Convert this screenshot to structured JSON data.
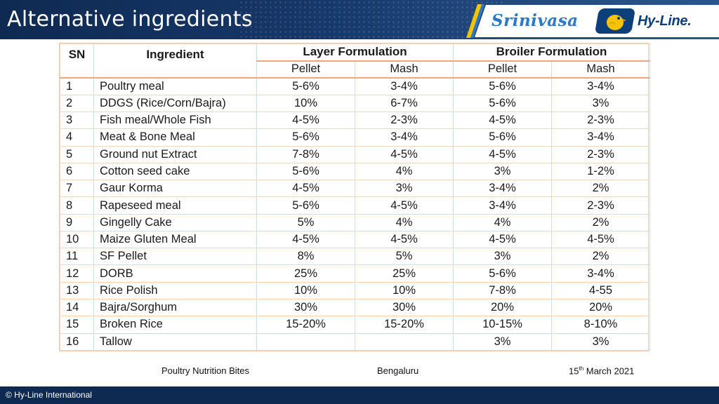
{
  "header": {
    "title": "Alternative ingredients",
    "brand_srinivasa": "Srinivasa",
    "brand_hyline": "Hy-Line.",
    "colors": {
      "navy": "#0f2a52",
      "brand_blue": "#2b78c9",
      "hyline_blue": "#0d3f7a",
      "chick_yellow": "#f5c400"
    }
  },
  "table": {
    "col_sn": "SN",
    "col_ingredient": "Ingredient",
    "group_layer": "Layer Formulation",
    "group_broiler": "Broiler Formulation",
    "sub_pellet": "Pellet",
    "sub_mash": "Mash",
    "rows": [
      {
        "sn": "1",
        "ingredient": "Poultry meal",
        "layer_pellet": "5-6%",
        "layer_mash": "3-4%",
        "broiler_pellet": "5-6%",
        "broiler_mash": "3-4%"
      },
      {
        "sn": "2",
        "ingredient": "DDGS (Rice/Corn/Bajra)",
        "layer_pellet": "10%",
        "layer_mash": "6-7%",
        "broiler_pellet": "5-6%",
        "broiler_mash": "3%"
      },
      {
        "sn": "3",
        "ingredient": "Fish meal/Whole Fish",
        "layer_pellet": "4-5%",
        "layer_mash": "2-3%",
        "broiler_pellet": "4-5%",
        "broiler_mash": "2-3%"
      },
      {
        "sn": "4",
        "ingredient": "Meat & Bone Meal",
        "layer_pellet": "5-6%",
        "layer_mash": "3-4%",
        "broiler_pellet": "5-6%",
        "broiler_mash": "3-4%"
      },
      {
        "sn": "5",
        "ingredient": "Ground nut Extract",
        "layer_pellet": "7-8%",
        "layer_mash": "4-5%",
        "broiler_pellet": "4-5%",
        "broiler_mash": "2-3%"
      },
      {
        "sn": "6",
        "ingredient": "Cotton seed cake",
        "layer_pellet": "5-6%",
        "layer_mash": "4%",
        "broiler_pellet": "3%",
        "broiler_mash": "1-2%"
      },
      {
        "sn": "7",
        "ingredient": "Gaur Korma",
        "layer_pellet": "4-5%",
        "layer_mash": "3%",
        "broiler_pellet": "3-4%",
        "broiler_mash": "2%"
      },
      {
        "sn": "8",
        "ingredient": "Rapeseed meal",
        "layer_pellet": "5-6%",
        "layer_mash": "4-5%",
        "broiler_pellet": "3-4%",
        "broiler_mash": "2-3%"
      },
      {
        "sn": "9",
        "ingredient": "Gingelly Cake",
        "layer_pellet": "5%",
        "layer_mash": "4%",
        "broiler_pellet": "4%",
        "broiler_mash": "2%"
      },
      {
        "sn": "10",
        "ingredient": "Maize Gluten Meal",
        "layer_pellet": "4-5%",
        "layer_mash": "4-5%",
        "broiler_pellet": "4-5%",
        "broiler_mash": "4-5%"
      },
      {
        "sn": "11",
        "ingredient": "SF Pellet",
        "layer_pellet": "8%",
        "layer_mash": "5%",
        "broiler_pellet": "3%",
        "broiler_mash": "2%"
      },
      {
        "sn": "12",
        "ingredient": "DORB",
        "layer_pellet": "25%",
        "layer_mash": "25%",
        "broiler_pellet": "5-6%",
        "broiler_mash": "3-4%"
      },
      {
        "sn": "13",
        "ingredient": "Rice Polish",
        "layer_pellet": "10%",
        "layer_mash": "10%",
        "broiler_pellet": "7-8%",
        "broiler_mash": "4-55"
      },
      {
        "sn": "14",
        "ingredient": "Bajra/Sorghum",
        "layer_pellet": "30%",
        "layer_mash": "30%",
        "broiler_pellet": "20%",
        "broiler_mash": "20%"
      },
      {
        "sn": "15",
        "ingredient": "Broken Rice",
        "layer_pellet": "15-20%",
        "layer_mash": "15-20%",
        "broiler_pellet": "10-15%",
        "broiler_mash": "8-10%"
      },
      {
        "sn": "16",
        "ingredient": "Tallow",
        "layer_pellet": "",
        "layer_mash": "",
        "broiler_pellet": "3%",
        "broiler_mash": "3%"
      }
    ]
  },
  "footer": {
    "left": "Poultry Nutrition Bites",
    "center": "Bengaluru",
    "date_day": "15",
    "date_sup": "th",
    "date_rest": " March 2021",
    "copyright": "© Hy-Line International"
  }
}
